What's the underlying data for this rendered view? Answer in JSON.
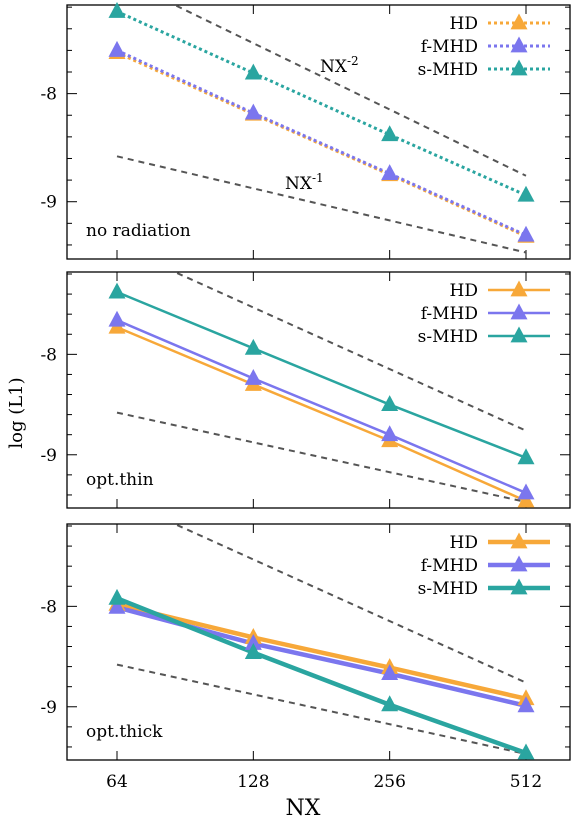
{
  "figure": {
    "ylabel": "log (L1)",
    "xlabel": "NX"
  },
  "chart_data": [
    {
      "type": "line",
      "panel_label": "no radiation",
      "x": [
        64,
        128,
        256,
        512
      ],
      "xticklabels": [
        "64",
        "128",
        "256",
        "512"
      ],
      "xscale": "log2",
      "ylim": [
        -9.53,
        -7.18
      ],
      "yticks": [
        -8,
        -9
      ],
      "yticklabels": [
        "-8",
        "-9"
      ],
      "line_style": "dotted",
      "legend": "top-right",
      "series": [
        {
          "name": "HD",
          "color": "#f7a839",
          "values": [
            -7.62,
            -8.19,
            -8.75,
            -9.32
          ]
        },
        {
          "name": "f-MHD",
          "color": "#7b76ee",
          "values": [
            -7.6,
            -8.18,
            -8.74,
            -9.31
          ]
        },
        {
          "name": "s-MHD",
          "color": "#2aa5a0",
          "values": [
            -7.24,
            -7.81,
            -8.38,
            -8.94
          ]
        }
      ],
      "references": [
        {
          "label": "NX-2",
          "label_base": "NX",
          "label_exp": "-2",
          "start": [
            64,
            -6.92
          ],
          "end": [
            512,
            -8.76
          ]
        },
        {
          "label": "NX-1",
          "label_base": "NX",
          "label_exp": "-1",
          "start": [
            64,
            -8.58
          ],
          "end": [
            512,
            -9.47
          ]
        }
      ]
    },
    {
      "type": "line",
      "panel_label": "opt.thin",
      "x": [
        64,
        128,
        256,
        512
      ],
      "xticklabels": [
        "64",
        "128",
        "256",
        "512"
      ],
      "xscale": "log2",
      "ylim": [
        -9.53,
        -7.18
      ],
      "yticks": [
        -8,
        -9
      ],
      "yticklabels": [
        "-8",
        "-9"
      ],
      "line_style": "solid",
      "legend": "top-right",
      "series": [
        {
          "name": "HD",
          "color": "#f7a839",
          "values": [
            -7.73,
            -8.3,
            -8.86,
            -9.46
          ]
        },
        {
          "name": "f-MHD",
          "color": "#7b76ee",
          "values": [
            -7.66,
            -8.24,
            -8.8,
            -9.38
          ]
        },
        {
          "name": "s-MHD",
          "color": "#2aa5a0",
          "values": [
            -7.38,
            -7.94,
            -8.5,
            -9.03
          ]
        }
      ],
      "references": [
        {
          "label": "",
          "start": [
            64,
            -6.92
          ],
          "end": [
            512,
            -8.76
          ]
        },
        {
          "label": "",
          "start": [
            64,
            -8.58
          ],
          "end": [
            512,
            -9.47
          ]
        }
      ]
    },
    {
      "type": "line",
      "panel_label": "opt.thick",
      "x": [
        64,
        128,
        256,
        512
      ],
      "xticklabels": [
        "64",
        "128",
        "256",
        "512"
      ],
      "xscale": "log2",
      "ylim": [
        -9.53,
        -7.18
      ],
      "yticks": [
        -8,
        -9
      ],
      "yticklabels": [
        "-8",
        "-9"
      ],
      "line_style": "thick",
      "legend": "top-right",
      "series": [
        {
          "name": "HD",
          "color": "#f7a839",
          "values": [
            -7.98,
            -8.31,
            -8.61,
            -8.92
          ]
        },
        {
          "name": "f-MHD",
          "color": "#7b76ee",
          "values": [
            -8.01,
            -8.37,
            -8.67,
            -8.99
          ]
        },
        {
          "name": "s-MHD",
          "color": "#2aa5a0",
          "values": [
            -7.92,
            -8.46,
            -8.98,
            -9.46
          ]
        }
      ],
      "references": [
        {
          "label": "",
          "start": [
            64,
            -6.92
          ],
          "end": [
            512,
            -8.76
          ]
        },
        {
          "label": "",
          "start": [
            64,
            -8.58
          ],
          "end": [
            512,
            -9.47
          ]
        }
      ]
    }
  ]
}
